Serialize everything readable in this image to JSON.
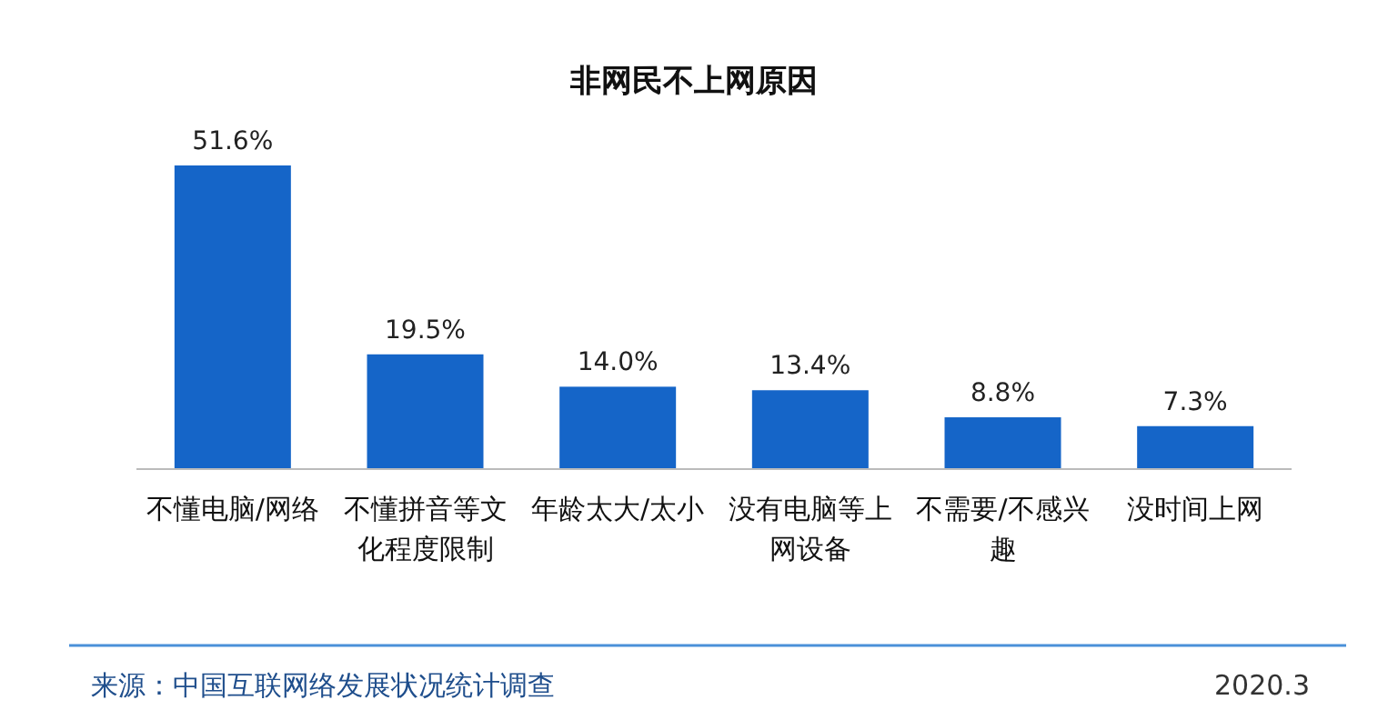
{
  "chart_data": {
    "type": "bar",
    "title": "非网民不上网原因",
    "categories": [
      "不懂电脑/网络",
      "不懂拼音等文化程度限制",
      "年龄太大/太小",
      "没有电脑等上网设备",
      "不需要/不感兴趣",
      "没时间上网"
    ],
    "values": [
      51.6,
      19.5,
      14.0,
      13.4,
      8.8,
      7.3
    ],
    "value_labels": [
      "51.6%",
      "19.5%",
      "14.0%",
      "13.4%",
      "8.8%",
      "7.3%"
    ],
    "color": "#1565c8",
    "annotations": [
      "来源：中国互联网络发展状况统计调查",
      "2020.3"
    ]
  }
}
